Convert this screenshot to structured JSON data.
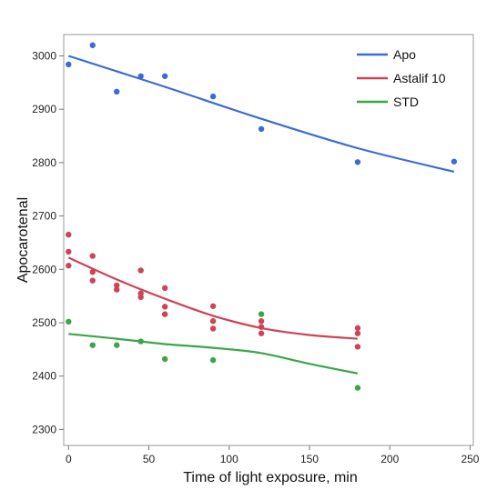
{
  "chart_data": {
    "type": "scatter",
    "xlabel": "Time of light exposure, min",
    "ylabel": "Apocarotenal",
    "xlim": [
      -3,
      252
    ],
    "ylim": [
      2270,
      3040
    ],
    "x_ticks": [
      "0",
      "50",
      "100",
      "150",
      "200",
      "250"
    ],
    "y_ticks": [
      "2300",
      "2400",
      "2500",
      "2600",
      "2700",
      "2800",
      "2900",
      "3000"
    ],
    "grid": false,
    "legend_position": "top-right",
    "series": [
      {
        "name": "Apo",
        "color": "#3b6bd6",
        "points": [
          [
            0,
            2984
          ],
          [
            15,
            3020
          ],
          [
            30,
            2933
          ],
          [
            45,
            2962
          ],
          [
            60,
            2962
          ],
          [
            90,
            2924
          ],
          [
            120,
            2863
          ],
          [
            180,
            2801
          ],
          [
            240,
            2802
          ]
        ],
        "fit": [
          [
            0,
            3000
          ],
          [
            60,
            2942
          ],
          [
            120,
            2882
          ],
          [
            180,
            2827
          ],
          [
            240,
            2783
          ]
        ]
      },
      {
        "name": "Astalif 10",
        "color": "#cc4455",
        "points": [
          [
            0,
            2665
          ],
          [
            0,
            2633
          ],
          [
            0,
            2607
          ],
          [
            15,
            2625
          ],
          [
            15,
            2595
          ],
          [
            15,
            2579
          ],
          [
            30,
            2570
          ],
          [
            30,
            2562
          ],
          [
            45,
            2598
          ],
          [
            45,
            2555
          ],
          [
            45,
            2548
          ],
          [
            60,
            2565
          ],
          [
            60,
            2530
          ],
          [
            60,
            2516
          ],
          [
            90,
            2531
          ],
          [
            90,
            2503
          ],
          [
            90,
            2489
          ],
          [
            120,
            2503
          ],
          [
            120,
            2492
          ],
          [
            120,
            2480
          ],
          [
            180,
            2490
          ],
          [
            180,
            2480
          ],
          [
            180,
            2455
          ]
        ],
        "fit": [
          [
            0,
            2622
          ],
          [
            30,
            2581
          ],
          [
            60,
            2545
          ],
          [
            90,
            2513
          ],
          [
            120,
            2490
          ],
          [
            150,
            2477
          ],
          [
            180,
            2470
          ]
        ]
      },
      {
        "name": "STD",
        "color": "#3aa64a",
        "points": [
          [
            0,
            2502
          ],
          [
            15,
            2458
          ],
          [
            30,
            2458
          ],
          [
            45,
            2465
          ],
          [
            60,
            2432
          ],
          [
            90,
            2430
          ],
          [
            120,
            2516
          ],
          [
            180,
            2378
          ]
        ],
        "fit": [
          [
            0,
            2479
          ],
          [
            30,
            2470
          ],
          [
            60,
            2460
          ],
          [
            90,
            2453
          ],
          [
            120,
            2443
          ],
          [
            150,
            2423
          ],
          [
            180,
            2405
          ]
        ]
      }
    ]
  }
}
